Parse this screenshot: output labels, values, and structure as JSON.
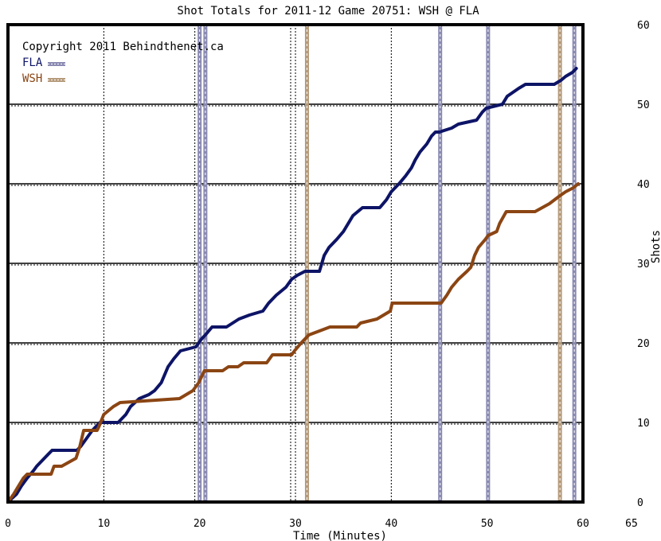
{
  "chart_data": {
    "type": "line",
    "title": "Shot Totals for 2011-12 Game 20751: WSH @ FLA",
    "copyright": "Copyright 2011 Behindthenet.ca",
    "xlabel": "Time (Minutes)",
    "ylabel": "Shots",
    "xlim": [
      0,
      65
    ],
    "ylim": [
      0,
      60
    ],
    "x_ticks": [
      0,
      10,
      20,
      30,
      40,
      50,
      60,
      65
    ],
    "y_ticks": [
      0,
      10,
      20,
      30,
      40,
      50,
      60
    ],
    "grid": true,
    "legend_position": "top-left",
    "colors": {
      "FLA": "#0d1466",
      "WSH": "#8b4513",
      "FLA_event": "#8a8ab2",
      "WSH_event": "#b59a7a",
      "gridline": "#000000"
    },
    "series": [
      {
        "name": "FLA",
        "x": [
          0,
          0.9,
          1.4,
          2.0,
          2.7,
          3.0,
          3.4,
          4.2,
          4.6,
          5.0,
          5.5,
          6.0,
          6.5,
          7.2,
          7.6,
          8.2,
          8.8,
          9.6,
          10.0,
          11.5,
          12.3,
          12.8,
          13.7,
          14.7,
          15.3,
          16.0,
          16.7,
          17.3,
          18.0,
          19.6,
          20.2,
          20.6,
          21.3,
          22.8,
          24.1,
          25.2,
          26.6,
          27.2,
          28.0,
          29.0,
          29.6,
          30.2,
          31.0,
          32.5,
          33.0,
          33.5,
          34.3,
          35.0,
          35.5,
          36.0,
          37.0,
          38.8,
          39.5,
          40.0,
          40.8,
          41.5,
          42.1,
          42.5,
          43.0,
          43.7,
          44.2,
          44.6,
          45.0,
          46.3,
          47.0,
          48.9,
          49.5,
          49.9,
          51.6,
          52.1,
          53.3,
          54.0,
          57.0,
          57.7,
          58.2,
          58.9,
          59.3
        ],
        "y": [
          0,
          1,
          2,
          3,
          4,
          4.5,
          5,
          6,
          6.5,
          6.5,
          6.5,
          6.5,
          6.5,
          6.5,
          7,
          8,
          9,
          10,
          10,
          10,
          11,
          12,
          13,
          13.5,
          14,
          15,
          17,
          18,
          19,
          19.5,
          20.5,
          21,
          22,
          22,
          23,
          23.5,
          24,
          25,
          26,
          27,
          28,
          28.5,
          29,
          29,
          31,
          32,
          33,
          34,
          35,
          36,
          37,
          37,
          38,
          39,
          40,
          41,
          42,
          43,
          44,
          45,
          46,
          46.5,
          46.5,
          47,
          47.5,
          48,
          49,
          49.5,
          50,
          51,
          52,
          52.5,
          52.5,
          53,
          53.5,
          54,
          54.5
        ]
      },
      {
        "name": "WSH",
        "x": [
          0,
          0.6,
          1.1,
          1.6,
          2.0,
          4.5,
          4.8,
          5.6,
          7.1,
          7.5,
          7.9,
          9.3,
          9.5,
          10.0,
          11.0,
          11.7,
          17.9,
          19.3,
          19.9,
          20.5,
          22.4,
          23.0,
          24.0,
          24.6,
          27.0,
          27.6,
          29.6,
          29.9,
          30.6,
          31.4,
          32.5,
          33.6,
          36.4,
          36.8,
          38.5,
          39.9,
          40.1,
          45.2,
          45.8,
          46.3,
          47.0,
          47.9,
          48.3,
          48.7,
          49.1,
          49.8,
          50.1,
          51.0,
          51.3,
          52.0,
          55.0,
          56.5,
          57.6,
          58.2,
          59.0,
          59.5
        ],
        "y": [
          0,
          1,
          2,
          3,
          3.5,
          3.5,
          4.5,
          4.5,
          5.5,
          7,
          9,
          9,
          9.5,
          11,
          12,
          12.5,
          13,
          14,
          15,
          16.5,
          16.5,
          17,
          17,
          17.5,
          17.5,
          18.5,
          18.5,
          19,
          20,
          21,
          21.5,
          22,
          22,
          22.5,
          23,
          24,
          25,
          25,
          26,
          27,
          28,
          29,
          29.5,
          31,
          32,
          33,
          33.5,
          34,
          35,
          36.5,
          36.5,
          37.5,
          38.5,
          39,
          39.5,
          40
        ]
      }
    ],
    "event_lines": [
      {
        "team": "FLA",
        "x": 20.0
      },
      {
        "team": "FLA",
        "x": 20.6
      },
      {
        "team": "WSH",
        "x": 31.2
      },
      {
        "team": "FLA",
        "x": 45.1
      },
      {
        "team": "FLA",
        "x": 50.1
      },
      {
        "team": "WSH",
        "x": 57.6
      },
      {
        "team": "FLA",
        "x": 59.1
      }
    ]
  }
}
